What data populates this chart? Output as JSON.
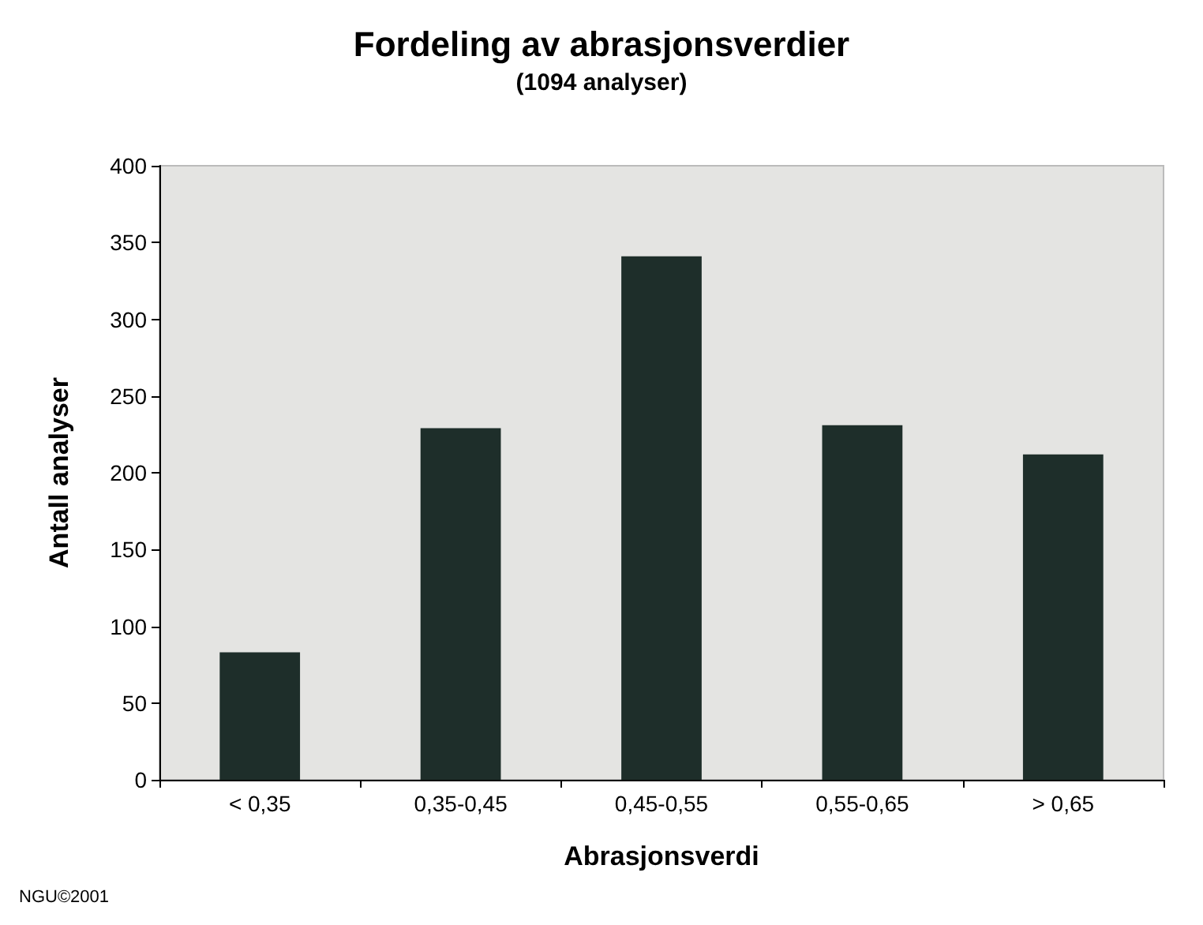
{
  "chart_data": {
    "type": "bar",
    "title": "Fordeling av abrasjonsverdier",
    "subtitle": "(1094 analyser)",
    "xlabel": "Abrasjonsverdi",
    "ylabel": "Antall analyser",
    "categories": [
      "< 0,35",
      "0,35-0,45",
      "0,45-0,55",
      "0,55-0,65",
      "> 0,65"
    ],
    "values": [
      83,
      229,
      341,
      231,
      212
    ],
    "color": "#1e2e2a",
    "ylim": [
      0,
      400
    ],
    "yticks": [
      0,
      50,
      100,
      150,
      200,
      250,
      300,
      350,
      400
    ],
    "grid": false,
    "annotations": [
      "NGU©2001"
    ]
  }
}
